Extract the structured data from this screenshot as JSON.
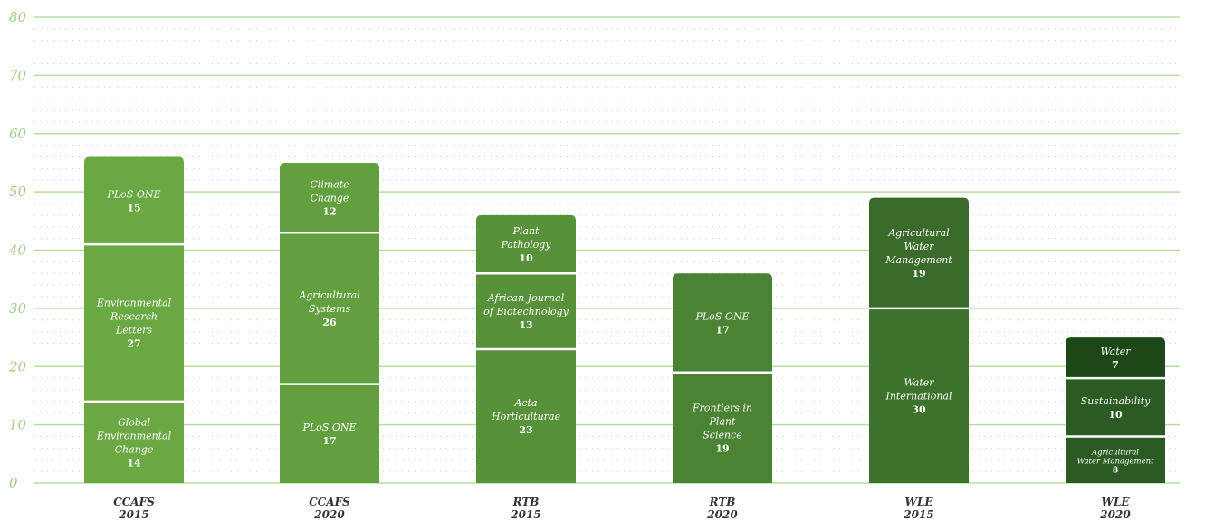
{
  "chart_data": {
    "type": "bar",
    "stacked": true,
    "ylim": [
      0,
      80
    ],
    "yticks": [
      "0",
      "10",
      "20",
      "30",
      "40",
      "50",
      "60",
      "70",
      "80"
    ],
    "grid": true,
    "categories": [
      {
        "name": "CCAFS",
        "year": "2015",
        "segments": [
          {
            "lines": [
              "Global",
              "Environmental",
              "Change"
            ],
            "value": 14,
            "color": "#6aa843"
          },
          {
            "lines": [
              "Environmental",
              "Research",
              "Letters"
            ],
            "value": 27,
            "color": "#6aa843"
          },
          {
            "lines": [
              "PLoS ONE"
            ],
            "value": 15,
            "color": "#6aa843"
          }
        ]
      },
      {
        "name": "CCAFS",
        "year": "2020",
        "segments": [
          {
            "lines": [
              "PLoS ONE"
            ],
            "value": 17,
            "color": "#62a03f"
          },
          {
            "lines": [
              "Agricultural",
              "Systems"
            ],
            "value": 26,
            "color": "#62a03f"
          },
          {
            "lines": [
              "Climate",
              "Change"
            ],
            "value": 12,
            "color": "#62a03f"
          }
        ]
      },
      {
        "name": "RTB",
        "year": "2015",
        "segments": [
          {
            "lines": [
              "Acta",
              "Horticulturae"
            ],
            "value": 23,
            "color": "#57923a"
          },
          {
            "lines": [
              "African Journal",
              "of Biotechnology"
            ],
            "value": 13,
            "color": "#57923a"
          },
          {
            "lines": [
              "Plant",
              "Pathology"
            ],
            "value": 10,
            "color": "#57923a"
          }
        ]
      },
      {
        "name": "RTB",
        "year": "2020",
        "segments": [
          {
            "lines": [
              "Frontiers in",
              "Plant",
              "Science"
            ],
            "value": 19,
            "color": "#4a8333"
          },
          {
            "lines": [
              "PLoS ONE"
            ],
            "value": 17,
            "color": "#4a8333"
          }
        ]
      },
      {
        "name": "WLE",
        "year": "2015",
        "segments": [
          {
            "lines": [
              "Water",
              "International"
            ],
            "value": 30,
            "color": "#3d722c"
          },
          {
            "lines": [
              "Agricultural",
              "Water",
              "Management"
            ],
            "value": 19,
            "color": "#3a6b2a"
          }
        ]
      },
      {
        "name": "WLE",
        "year": "2020",
        "segments": [
          {
            "lines": [
              "Agricultural",
              "Water Management"
            ],
            "value": 8,
            "color": "#2b5a22",
            "small": true
          },
          {
            "lines": [
              "Sustainability"
            ],
            "value": 10,
            "color": "#2b5a22"
          },
          {
            "lines": [
              "Water"
            ],
            "value": 7,
            "color": "#1c4716"
          }
        ]
      }
    ]
  }
}
